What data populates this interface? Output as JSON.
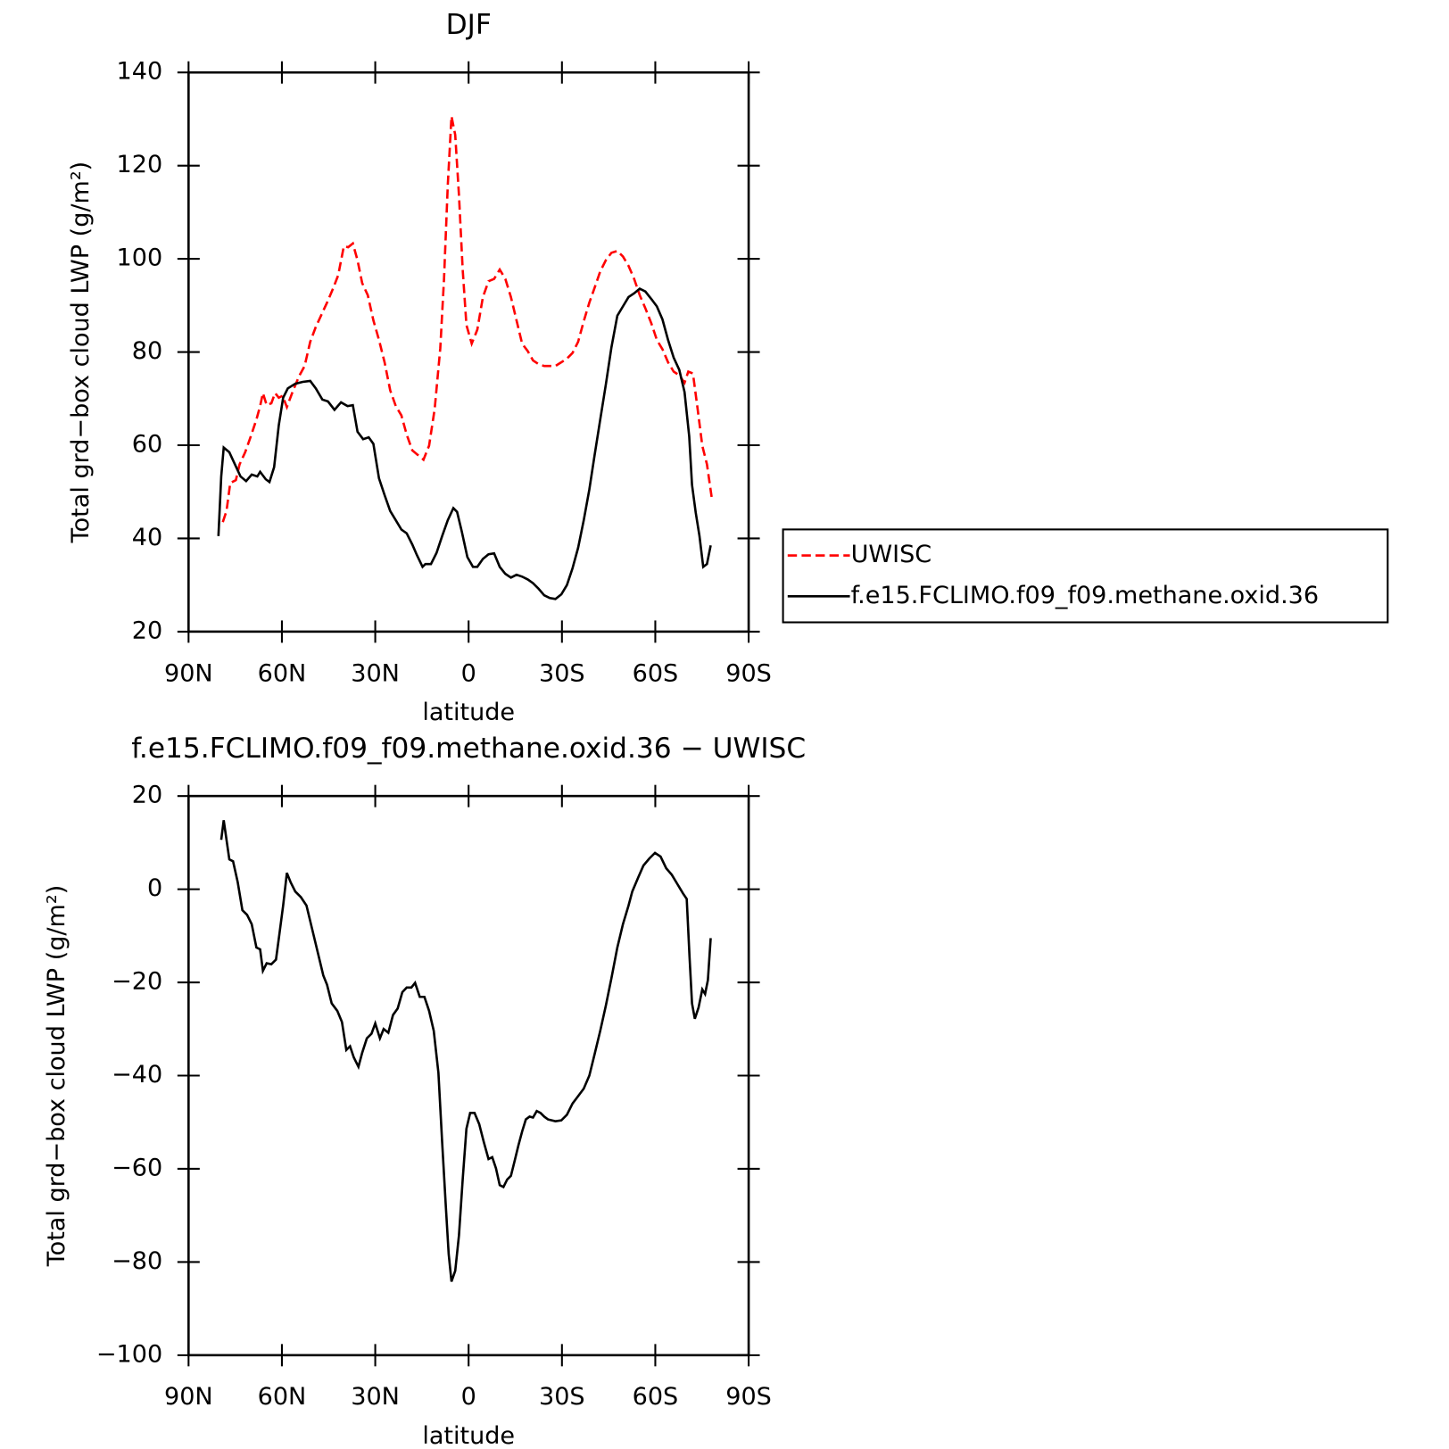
{
  "chart_data": [
    {
      "type": "line",
      "title": "DJF",
      "xlabel": "latitude",
      "ylabel": "Total grd−box cloud LWP (g/m²)",
      "xlim": [
        90,
        -90
      ],
      "xticks": [
        {
          "value": 90,
          "label": "90N"
        },
        {
          "value": 60,
          "label": "60N"
        },
        {
          "value": 30,
          "label": "30N"
        },
        0,
        {
          "value": -30,
          "label": "30S"
        },
        {
          "value": -60,
          "label": "60S"
        },
        {
          "value": -90,
          "label": "90S"
        }
      ],
      "ylim": [
        20,
        140
      ],
      "yticks": [
        20,
        40,
        60,
        80,
        100,
        120,
        140
      ],
      "legend": "outside-right",
      "series": [
        {
          "name": "UWISC",
          "color": "#ff0000",
          "dash": true,
          "x": [
            79.0,
            77.8,
            76.6,
            74.8,
            73.6,
            71.8,
            70.0,
            68.2,
            67.0,
            66.1,
            64.9,
            63.4,
            62.2,
            61.0,
            59.8,
            58.4,
            56.6,
            54.5,
            52.7,
            50.9,
            49.1,
            47.3,
            45.5,
            43.7,
            41.9,
            40.1,
            38.7,
            37.2,
            35.7,
            34.2,
            32.4,
            30.6,
            28.8,
            27.0,
            25.2,
            23.4,
            21.6,
            19.9,
            18.1,
            16.3,
            14.5,
            12.7,
            10.9,
            9.1,
            7.9,
            6.7,
            5.5,
            4.3,
            3.1,
            1.9,
            0.7,
            -1.0,
            -2.8,
            -4.6,
            -6.4,
            -8.2,
            -10.0,
            -11.8,
            -13.6,
            -15.4,
            -17.2,
            -19.0,
            -20.7,
            -22.5,
            -24.3,
            -26.1,
            -27.9,
            -29.8,
            -31.6,
            -33.4,
            -35.2,
            -37.0,
            -38.8,
            -40.5,
            -42.3,
            -44.1,
            -45.9,
            -47.8,
            -49.6,
            -51.4,
            -53.2,
            -55.0,
            -56.8,
            -58.7,
            -60.5,
            -62.3,
            -64.1,
            -65.9,
            -67.7,
            -69.4,
            -70.6,
            -72.1,
            -73.6,
            -75.1,
            -76.6,
            -78.1
          ],
          "values": [
            43.5,
            45.9,
            51.9,
            52.5,
            55.9,
            58.5,
            61.9,
            65.5,
            68.4,
            71.2,
            68.6,
            69.0,
            71.2,
            70.2,
            70.6,
            68.2,
            71.4,
            74.8,
            77.0,
            82.2,
            85.4,
            88.0,
            90.6,
            93.4,
            96.5,
            102.7,
            102.5,
            103.3,
            99.7,
            94.8,
            92.2,
            86.8,
            82.6,
            77.8,
            71.8,
            68.4,
            66.4,
            62.3,
            58.9,
            57.9,
            56.9,
            59.9,
            67.8,
            80.8,
            95.7,
            115.7,
            130.6,
            126.6,
            113.7,
            97.7,
            85.8,
            81.8,
            84.8,
            91.8,
            95.2,
            95.7,
            97.7,
            95.7,
            91.8,
            86.8,
            81.8,
            80.2,
            78.2,
            77.4,
            77.0,
            77.0,
            77.0,
            77.8,
            78.6,
            79.8,
            82.2,
            86.6,
            90.6,
            93.8,
            97.3,
            99.7,
            101.3,
            101.7,
            100.5,
            98.5,
            95.7,
            92.2,
            89.4,
            86.2,
            82.6,
            80.6,
            77.8,
            75.8,
            75.0,
            73.4,
            75.8,
            75.4,
            67.8,
            59.9,
            55.9,
            48.9
          ]
        },
        {
          "name": "f.e15.FCLIMO.f09_f09.methane.oxid.36",
          "color": "#000000",
          "dash": false,
          "x": [
            80.4,
            79.5,
            78.7,
            76.9,
            75.1,
            73.3,
            71.5,
            69.7,
            67.9,
            67.0,
            65.2,
            64.0,
            62.5,
            61.0,
            59.6,
            58.1,
            55.7,
            53.3,
            50.9,
            49.1,
            47.0,
            45.2,
            43.1,
            41.0,
            38.9,
            37.2,
            35.7,
            33.9,
            32.1,
            30.6,
            28.8,
            27.0,
            25.2,
            23.4,
            21.6,
            19.9,
            18.1,
            16.6,
            14.8,
            13.9,
            12.1,
            10.3,
            8.5,
            6.7,
            4.9,
            3.7,
            2.2,
            0.4,
            -1.4,
            -2.8,
            -4.6,
            -6.4,
            -8.2,
            -10.0,
            -11.8,
            -13.6,
            -15.4,
            -17.2,
            -19.0,
            -20.7,
            -22.5,
            -24.3,
            -26.1,
            -27.9,
            -29.8,
            -31.6,
            -33.4,
            -35.2,
            -37.0,
            -38.8,
            -40.5,
            -42.3,
            -44.1,
            -45.9,
            -47.8,
            -49.6,
            -51.4,
            -53.2,
            -55.0,
            -56.8,
            -58.7,
            -60.5,
            -62.3,
            -64.1,
            -65.9,
            -67.7,
            -69.4,
            -70.9,
            -71.8,
            -73.0,
            -74.2,
            -75.4,
            -76.6,
            -77.8
          ],
          "values": [
            40.5,
            53.3,
            59.5,
            58.5,
            55.9,
            53.3,
            52.3,
            53.7,
            53.3,
            54.3,
            52.7,
            52.1,
            55.3,
            64.3,
            70.2,
            72.2,
            73.2,
            73.6,
            73.8,
            72.2,
            69.8,
            69.4,
            67.6,
            69.2,
            68.4,
            68.6,
            62.9,
            61.3,
            61.7,
            60.3,
            52.9,
            49.3,
            45.9,
            43.9,
            41.9,
            41.1,
            38.7,
            36.4,
            33.9,
            34.5,
            34.5,
            36.9,
            40.5,
            43.9,
            46.5,
            45.7,
            41.5,
            36.0,
            33.9,
            33.9,
            35.6,
            36.6,
            36.8,
            33.9,
            32.4,
            31.6,
            32.2,
            31.8,
            31.2,
            30.4,
            29.2,
            27.8,
            27.2,
            27.0,
            28.0,
            30.0,
            33.6,
            38.0,
            43.9,
            50.5,
            57.9,
            65.5,
            73.0,
            81.0,
            87.8,
            89.8,
            91.8,
            92.6,
            93.6,
            93.0,
            91.4,
            89.8,
            87.0,
            82.6,
            78.8,
            76.2,
            71.4,
            61.9,
            51.5,
            45.5,
            40.5,
            33.9,
            34.5,
            38.5
          ]
        }
      ]
    },
    {
      "type": "line",
      "title": "f.e15.FCLIMO.f09_f09.methane.oxid.36  −  UWISC",
      "xlabel": "latitude",
      "ylabel": "Total grd−box cloud LWP (g/m²)",
      "xlim": [
        90,
        -90
      ],
      "xticks": [
        {
          "value": 90,
          "label": "90N"
        },
        {
          "value": 60,
          "label": "60N"
        },
        {
          "value": 30,
          "label": "30N"
        },
        0,
        {
          "value": -30,
          "label": "30S"
        },
        {
          "value": -60,
          "label": "60S"
        },
        {
          "value": -90,
          "label": "90S"
        }
      ],
      "ylim": [
        -100,
        20
      ],
      "yticks": [
        {
          "value": -100,
          "label": "−100"
        },
        {
          "value": -80,
          "label": "−80"
        },
        {
          "value": -60,
          "label": "−60"
        },
        {
          "value": -40,
          "label": "−40"
        },
        {
          "value": -20,
          "label": "−20"
        },
        0,
        20
      ],
      "color": "#000000",
      "x": [
        79.5,
        78.7,
        76.9,
        75.7,
        74.2,
        72.7,
        71.2,
        69.7,
        68.2,
        67.0,
        66.1,
        64.9,
        63.4,
        61.9,
        60.7,
        59.6,
        58.4,
        57.2,
        55.7,
        53.9,
        52.1,
        50.3,
        48.5,
        46.7,
        45.5,
        44.0,
        42.2,
        40.7,
        39.3,
        38.1,
        36.9,
        35.4,
        34.2,
        32.7,
        31.2,
        30.0,
        28.5,
        27.3,
        25.8,
        24.3,
        22.8,
        21.3,
        19.9,
        18.4,
        17.2,
        15.7,
        14.2,
        12.7,
        11.2,
        9.7,
        8.5,
        7.3,
        6.4,
        5.5,
        4.3,
        3.1,
        1.9,
        0.7,
        -0.5,
        -1.9,
        -3.4,
        -4.9,
        -6.4,
        -7.6,
        -8.8,
        -10.0,
        -11.2,
        -12.4,
        -13.6,
        -14.8,
        -16.0,
        -17.2,
        -18.4,
        -19.6,
        -20.7,
        -21.9,
        -23.1,
        -24.3,
        -25.5,
        -26.7,
        -27.9,
        -29.8,
        -31.6,
        -33.4,
        -35.2,
        -37.0,
        -38.8,
        -40.5,
        -42.3,
        -44.1,
        -45.9,
        -47.8,
        -49.6,
        -51.4,
        -52.6,
        -54.5,
        -56.2,
        -58.1,
        -59.9,
        -61.7,
        -63.5,
        -65.3,
        -67.1,
        -68.9,
        -70.1,
        -71.0,
        -71.8,
        -72.7,
        -73.9,
        -75.1,
        -76.0,
        -76.9,
        -77.8
      ],
      "values": [
        10.6,
        14.8,
        6.4,
        6.0,
        1.5,
        -4.5,
        -5.5,
        -7.5,
        -12.5,
        -12.9,
        -17.5,
        -15.9,
        -16.1,
        -15.1,
        -9.1,
        -3.5,
        3.5,
        1.5,
        -0.5,
        -1.7,
        -3.5,
        -8.5,
        -13.5,
        -18.5,
        -20.5,
        -24.5,
        -26.1,
        -28.5,
        -34.5,
        -33.7,
        -36.1,
        -38.1,
        -35.1,
        -32.0,
        -31.0,
        -28.8,
        -32.0,
        -30.0,
        -30.8,
        -27.0,
        -25.6,
        -22.1,
        -21.1,
        -21.1,
        -20.1,
        -23.1,
        -23.1,
        -26.1,
        -30.4,
        -39.4,
        -54.3,
        -68.3,
        -78.3,
        -84.2,
        -81.9,
        -74.3,
        -62.3,
        -51.4,
        -48.0,
        -48.0,
        -50.4,
        -54.3,
        -57.9,
        -57.5,
        -59.9,
        -63.5,
        -63.9,
        -62.3,
        -61.5,
        -58.3,
        -55.0,
        -52.0,
        -49.4,
        -48.8,
        -49.0,
        -47.6,
        -48.0,
        -48.8,
        -49.4,
        -49.6,
        -49.8,
        -49.6,
        -48.4,
        -46.0,
        -44.4,
        -42.8,
        -40.0,
        -35.4,
        -30.4,
        -25.0,
        -19.1,
        -12.5,
        -7.5,
        -3.5,
        -0.5,
        2.5,
        5.1,
        6.6,
        7.8,
        7.0,
        4.5,
        3.1,
        1.1,
        -0.9,
        -2.1,
        -14.5,
        -24.5,
        -27.8,
        -25.4,
        -21.5,
        -22.5,
        -19.5,
        -10.5
      ]
    }
  ]
}
